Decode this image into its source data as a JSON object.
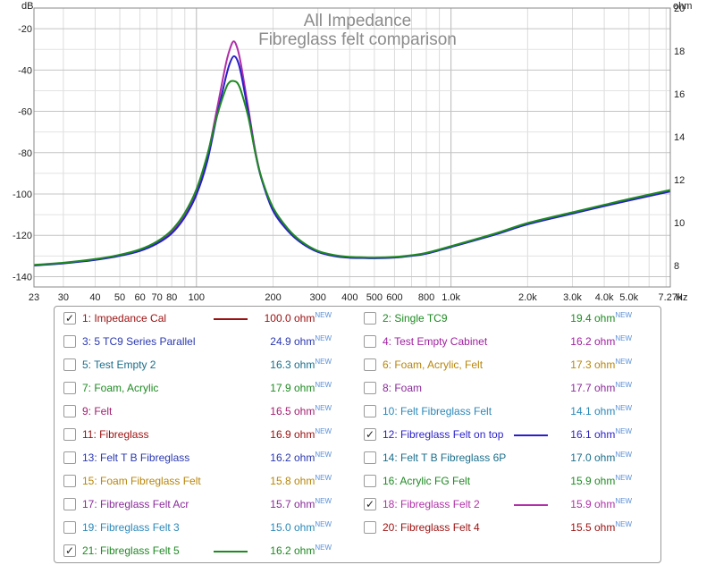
{
  "chart_data": {
    "type": "line",
    "title": "All Impedance",
    "subtitle": "Fibreglass felt comparison",
    "y_left_label": "dB",
    "y_right_label": "ohm",
    "x_unit_label": "Hz",
    "x_scale": "log",
    "xlim": [
      23,
      7270
    ],
    "ylim_left": [
      -145,
      -10
    ],
    "ylim_right": [
      7,
      20
    ],
    "grid": true,
    "x_ticks": [
      {
        "v": 23,
        "label": "23"
      },
      {
        "v": 30,
        "label": "30"
      },
      {
        "v": 40,
        "label": "40"
      },
      {
        "v": 50,
        "label": "50"
      },
      {
        "v": 60,
        "label": "60"
      },
      {
        "v": 70,
        "label": "70"
      },
      {
        "v": 80,
        "label": "80"
      },
      {
        "v": 100,
        "label": "100"
      },
      {
        "v": 200,
        "label": "200"
      },
      {
        "v": 300,
        "label": "300"
      },
      {
        "v": 400,
        "label": "400"
      },
      {
        "v": 500,
        "label": "500"
      },
      {
        "v": 600,
        "label": "600"
      },
      {
        "v": 800,
        "label": "800"
      },
      {
        "v": 1000,
        "label": "1.0k"
      },
      {
        "v": 2000,
        "label": "2.0k"
      },
      {
        "v": 3000,
        "label": "3.0k"
      },
      {
        "v": 4000,
        "label": "4.0k"
      },
      {
        "v": 5000,
        "label": "5.0k"
      },
      {
        "v": 7270,
        "label": "7.27k"
      }
    ],
    "y_left_ticks": [
      -20,
      -40,
      -60,
      -80,
      -100,
      -120,
      -140
    ],
    "y_right_ticks": [
      20,
      18,
      16,
      14,
      12,
      10,
      8
    ],
    "series": [
      {
        "name": "18: Fibreglass Felt 2",
        "color": "#b030a8",
        "x": [
          23,
          30,
          40,
          50,
          60,
          70,
          80,
          90,
          100,
          110,
          120,
          130,
          135,
          140,
          145,
          150,
          160,
          170,
          180,
          200,
          230,
          260,
          300,
          350,
          400,
          450,
          500,
          600,
          700,
          800,
          1000,
          1500,
          2000,
          3000,
          4000,
          5000,
          7270
        ],
        "y": [
          8.02,
          8.11,
          8.28,
          8.47,
          8.7,
          9.05,
          9.55,
          10.3,
          11.4,
          13.0,
          15.2,
          17.3,
          18.05,
          18.45,
          18.1,
          17.3,
          15.3,
          13.4,
          12.1,
          10.6,
          9.6,
          9.05,
          8.65,
          8.45,
          8.38,
          8.36,
          8.35,
          8.38,
          8.46,
          8.57,
          8.88,
          9.47,
          9.95,
          10.45,
          10.8,
          11.06,
          11.48
        ]
      },
      {
        "name": "12: Fibreglass Felt on top",
        "color": "#2a1fc8",
        "x": [
          23,
          30,
          40,
          50,
          60,
          70,
          80,
          90,
          100,
          110,
          120,
          130,
          135,
          140,
          145,
          150,
          160,
          170,
          180,
          200,
          230,
          260,
          300,
          350,
          400,
          450,
          500,
          600,
          700,
          800,
          1000,
          1500,
          2000,
          3000,
          4000,
          5000,
          7270
        ],
        "y": [
          8.0,
          8.1,
          8.26,
          8.45,
          8.68,
          9.02,
          9.5,
          10.25,
          11.3,
          12.8,
          14.9,
          16.7,
          17.4,
          17.75,
          17.55,
          16.9,
          15.1,
          13.3,
          12.05,
          10.55,
          9.58,
          9.03,
          8.63,
          8.43,
          8.36,
          8.35,
          8.34,
          8.37,
          8.45,
          8.55,
          8.86,
          9.45,
          9.92,
          10.42,
          10.77,
          11.03,
          11.45
        ]
      },
      {
        "name": "21: Fibreglass Felt 5",
        "color": "#1e8a22",
        "x": [
          23,
          30,
          40,
          50,
          60,
          70,
          80,
          90,
          100,
          110,
          120,
          130,
          135,
          140,
          145,
          150,
          160,
          170,
          180,
          200,
          230,
          260,
          300,
          350,
          400,
          450,
          500,
          600,
          700,
          800,
          1000,
          1500,
          2000,
          3000,
          4000,
          5000,
          7270
        ],
        "y": [
          8.03,
          8.13,
          8.3,
          8.5,
          8.75,
          9.12,
          9.65,
          10.45,
          11.55,
          13.1,
          14.9,
          16.2,
          16.55,
          16.6,
          16.5,
          16.1,
          14.9,
          13.3,
          12.1,
          10.7,
          9.68,
          9.1,
          8.68,
          8.48,
          8.4,
          8.38,
          8.37,
          8.4,
          8.48,
          8.59,
          8.9,
          9.5,
          9.98,
          10.48,
          10.83,
          11.1,
          11.52
        ]
      }
    ]
  },
  "legend": {
    "new_tag": "NEW",
    "items": [
      {
        "label": "1: Impedance Cal",
        "value": "100.0 ohm",
        "color": "#9b1010",
        "checked": true,
        "swatch": "#9b1010"
      },
      {
        "label": "2: Single TC9",
        "value": "19.4 ohm",
        "color": "#1e8a22",
        "checked": false,
        "swatch": ""
      },
      {
        "label": "3: 5 TC9 Series Parallel",
        "value": "24.9 ohm",
        "color": "#2a38b0",
        "checked": false,
        "swatch": ""
      },
      {
        "label": "4: Test Empty Cabinet",
        "value": "16.2 ohm",
        "color": "#a020a0",
        "checked": false,
        "swatch": ""
      },
      {
        "label": "5: Test Empty 2",
        "value": "16.3 ohm",
        "color": "#1a6e8a",
        "checked": false,
        "swatch": ""
      },
      {
        "label": "6: Foam, Acrylic, Felt",
        "value": "17.3 ohm",
        "color": "#b8860b",
        "checked": false,
        "swatch": ""
      },
      {
        "label": "7: Foam, Acrylic",
        "value": "17.9 ohm",
        "color": "#1e8a22",
        "checked": false,
        "swatch": ""
      },
      {
        "label": "8: Foam",
        "value": "17.7 ohm",
        "color": "#8a2a9a",
        "checked": false,
        "swatch": ""
      },
      {
        "label": "9: Felt",
        "value": "16.5 ohm",
        "color": "#a02070",
        "checked": false,
        "swatch": ""
      },
      {
        "label": "10: Felt Fibreglass Felt",
        "value": "14.1 ohm",
        "color": "#2a88b8",
        "checked": false,
        "swatch": ""
      },
      {
        "label": "11: Fibreglass",
        "value": "16.9 ohm",
        "color": "#9b1010",
        "checked": false,
        "swatch": ""
      },
      {
        "label": "12: Fibreglass Felt on top",
        "value": "16.1 ohm",
        "color": "#2a1fc8",
        "checked": true,
        "swatch": "#2a1fc8"
      },
      {
        "label": "13: Felt T B Fibreglass",
        "value": "16.2 ohm",
        "color": "#2a38b0",
        "checked": false,
        "swatch": ""
      },
      {
        "label": "14: Felt T B Fibreglass 6P",
        "value": "17.0 ohm",
        "color": "#1a6e8a",
        "checked": false,
        "swatch": ""
      },
      {
        "label": "15: Foam Fibreglass Felt",
        "value": "15.8 ohm",
        "color": "#b8860b",
        "checked": false,
        "swatch": ""
      },
      {
        "label": "16: Acrylic FG Felt",
        "value": "15.9 ohm",
        "color": "#1e8a22",
        "checked": false,
        "swatch": ""
      },
      {
        "label": "17: Fibreglass Felt Acr",
        "value": "15.7 ohm",
        "color": "#8a2a9a",
        "checked": false,
        "swatch": ""
      },
      {
        "label": "18: Fibreglass Felt 2",
        "value": "15.9 ohm",
        "color": "#b030a8",
        "checked": true,
        "swatch": "#b030a8"
      },
      {
        "label": "19: Fibreglass Felt 3",
        "value": "15.0 ohm",
        "color": "#2a88b8",
        "checked": false,
        "swatch": ""
      },
      {
        "label": "20: Fibreglass Felt 4",
        "value": "15.5 ohm",
        "color": "#9b1010",
        "checked": false,
        "swatch": ""
      },
      {
        "label": "21: Fibreglass Felt 5",
        "value": "16.2 ohm",
        "color": "#1e8a22",
        "checked": true,
        "swatch": "#1e8a22"
      }
    ]
  }
}
